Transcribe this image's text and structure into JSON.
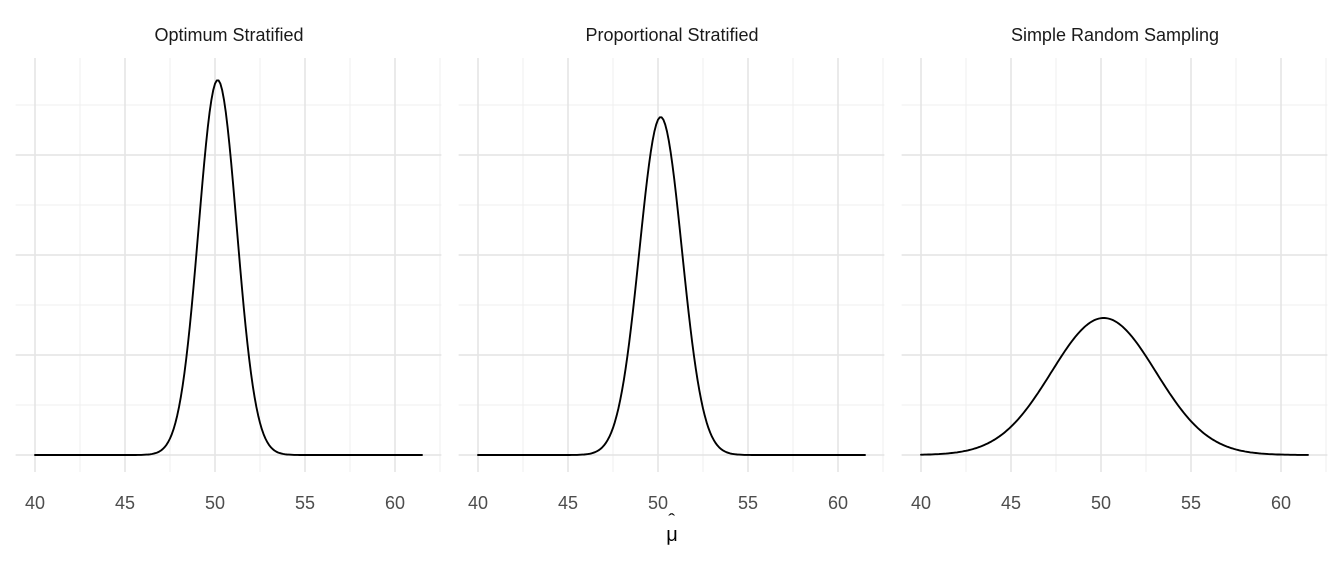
{
  "chart_data": {
    "type": "line",
    "subtype": "normal-density-curves",
    "description": "Three-facet sampling distribution comparison of the estimator mu-hat",
    "facets": [
      {
        "title": "Optimum Stratified",
        "mean": 50.15,
        "sd": 1.06,
        "peak_density": 0.375
      },
      {
        "title": "Proportional Stratified",
        "mean": 50.15,
        "sd": 1.18,
        "peak_density": 0.338
      },
      {
        "title": "Simple Random Sampling",
        "mean": 50.15,
        "sd": 2.9,
        "peak_density": 0.137
      }
    ],
    "x_ticks": [
      40,
      45,
      50,
      55,
      60
    ],
    "x_minor": [
      42.5,
      47.5,
      52.5,
      57.5,
      62.5
    ],
    "x_range": [
      40,
      61.5
    ],
    "y_major": [
      0,
      0.1,
      0.2,
      0.3
    ],
    "y_minor": [
      0.05,
      0.15,
      0.25,
      0.35
    ],
    "y_range": [
      0,
      0.395
    ],
    "xlabel": "μ̂",
    "xlabel_hat": "ˆ",
    "xlabel_base": "μ",
    "ylabel": "",
    "legend": false,
    "grid": true,
    "style": {
      "background": "#ffffff",
      "line_color": "#000000",
      "grid_major_color": "#e4e4e4",
      "grid_minor_color": "#efefef",
      "tick_label_color": "#4d4d4d",
      "title_color": "#1a1a1a"
    }
  }
}
